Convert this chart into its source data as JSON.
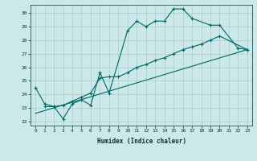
{
  "xlabel": "Humidex (Indice chaleur)",
  "bg_color": "#cde8e8",
  "grid_color": "#a8cccc",
  "line_color": "#006666",
  "xlim": [
    -0.5,
    23.5
  ],
  "ylim": [
    21.7,
    30.6
  ],
  "xticks": [
    0,
    1,
    2,
    3,
    4,
    5,
    6,
    7,
    8,
    9,
    10,
    11,
    12,
    13,
    14,
    15,
    16,
    17,
    18,
    19,
    20,
    21,
    22,
    23
  ],
  "yticks": [
    22,
    23,
    24,
    25,
    26,
    27,
    28,
    29,
    30
  ],
  "curve1_x": [
    0,
    1,
    2,
    3,
    4,
    5,
    6,
    7,
    8,
    10,
    11,
    12,
    13,
    14,
    15,
    16,
    17,
    19,
    20,
    22,
    23
  ],
  "curve1_y": [
    24.5,
    23.3,
    23.1,
    22.2,
    23.3,
    23.6,
    23.2,
    25.6,
    24.1,
    28.7,
    29.4,
    29.0,
    29.4,
    29.4,
    30.3,
    30.3,
    29.6,
    29.1,
    29.1,
    27.4,
    27.3
  ],
  "curve2_x": [
    1,
    2,
    3,
    4,
    5,
    6,
    7,
    8,
    9,
    10,
    11,
    12,
    13,
    14,
    15,
    16,
    17,
    18,
    19,
    20,
    23
  ],
  "curve2_y": [
    23.1,
    23.1,
    23.2,
    23.5,
    23.8,
    24.1,
    25.2,
    25.3,
    25.3,
    25.6,
    26.0,
    26.2,
    26.5,
    26.7,
    27.0,
    27.3,
    27.5,
    27.7,
    28.0,
    28.3,
    27.3
  ],
  "curve3_x": [
    0,
    23
  ],
  "curve3_y": [
    22.6,
    27.3
  ]
}
